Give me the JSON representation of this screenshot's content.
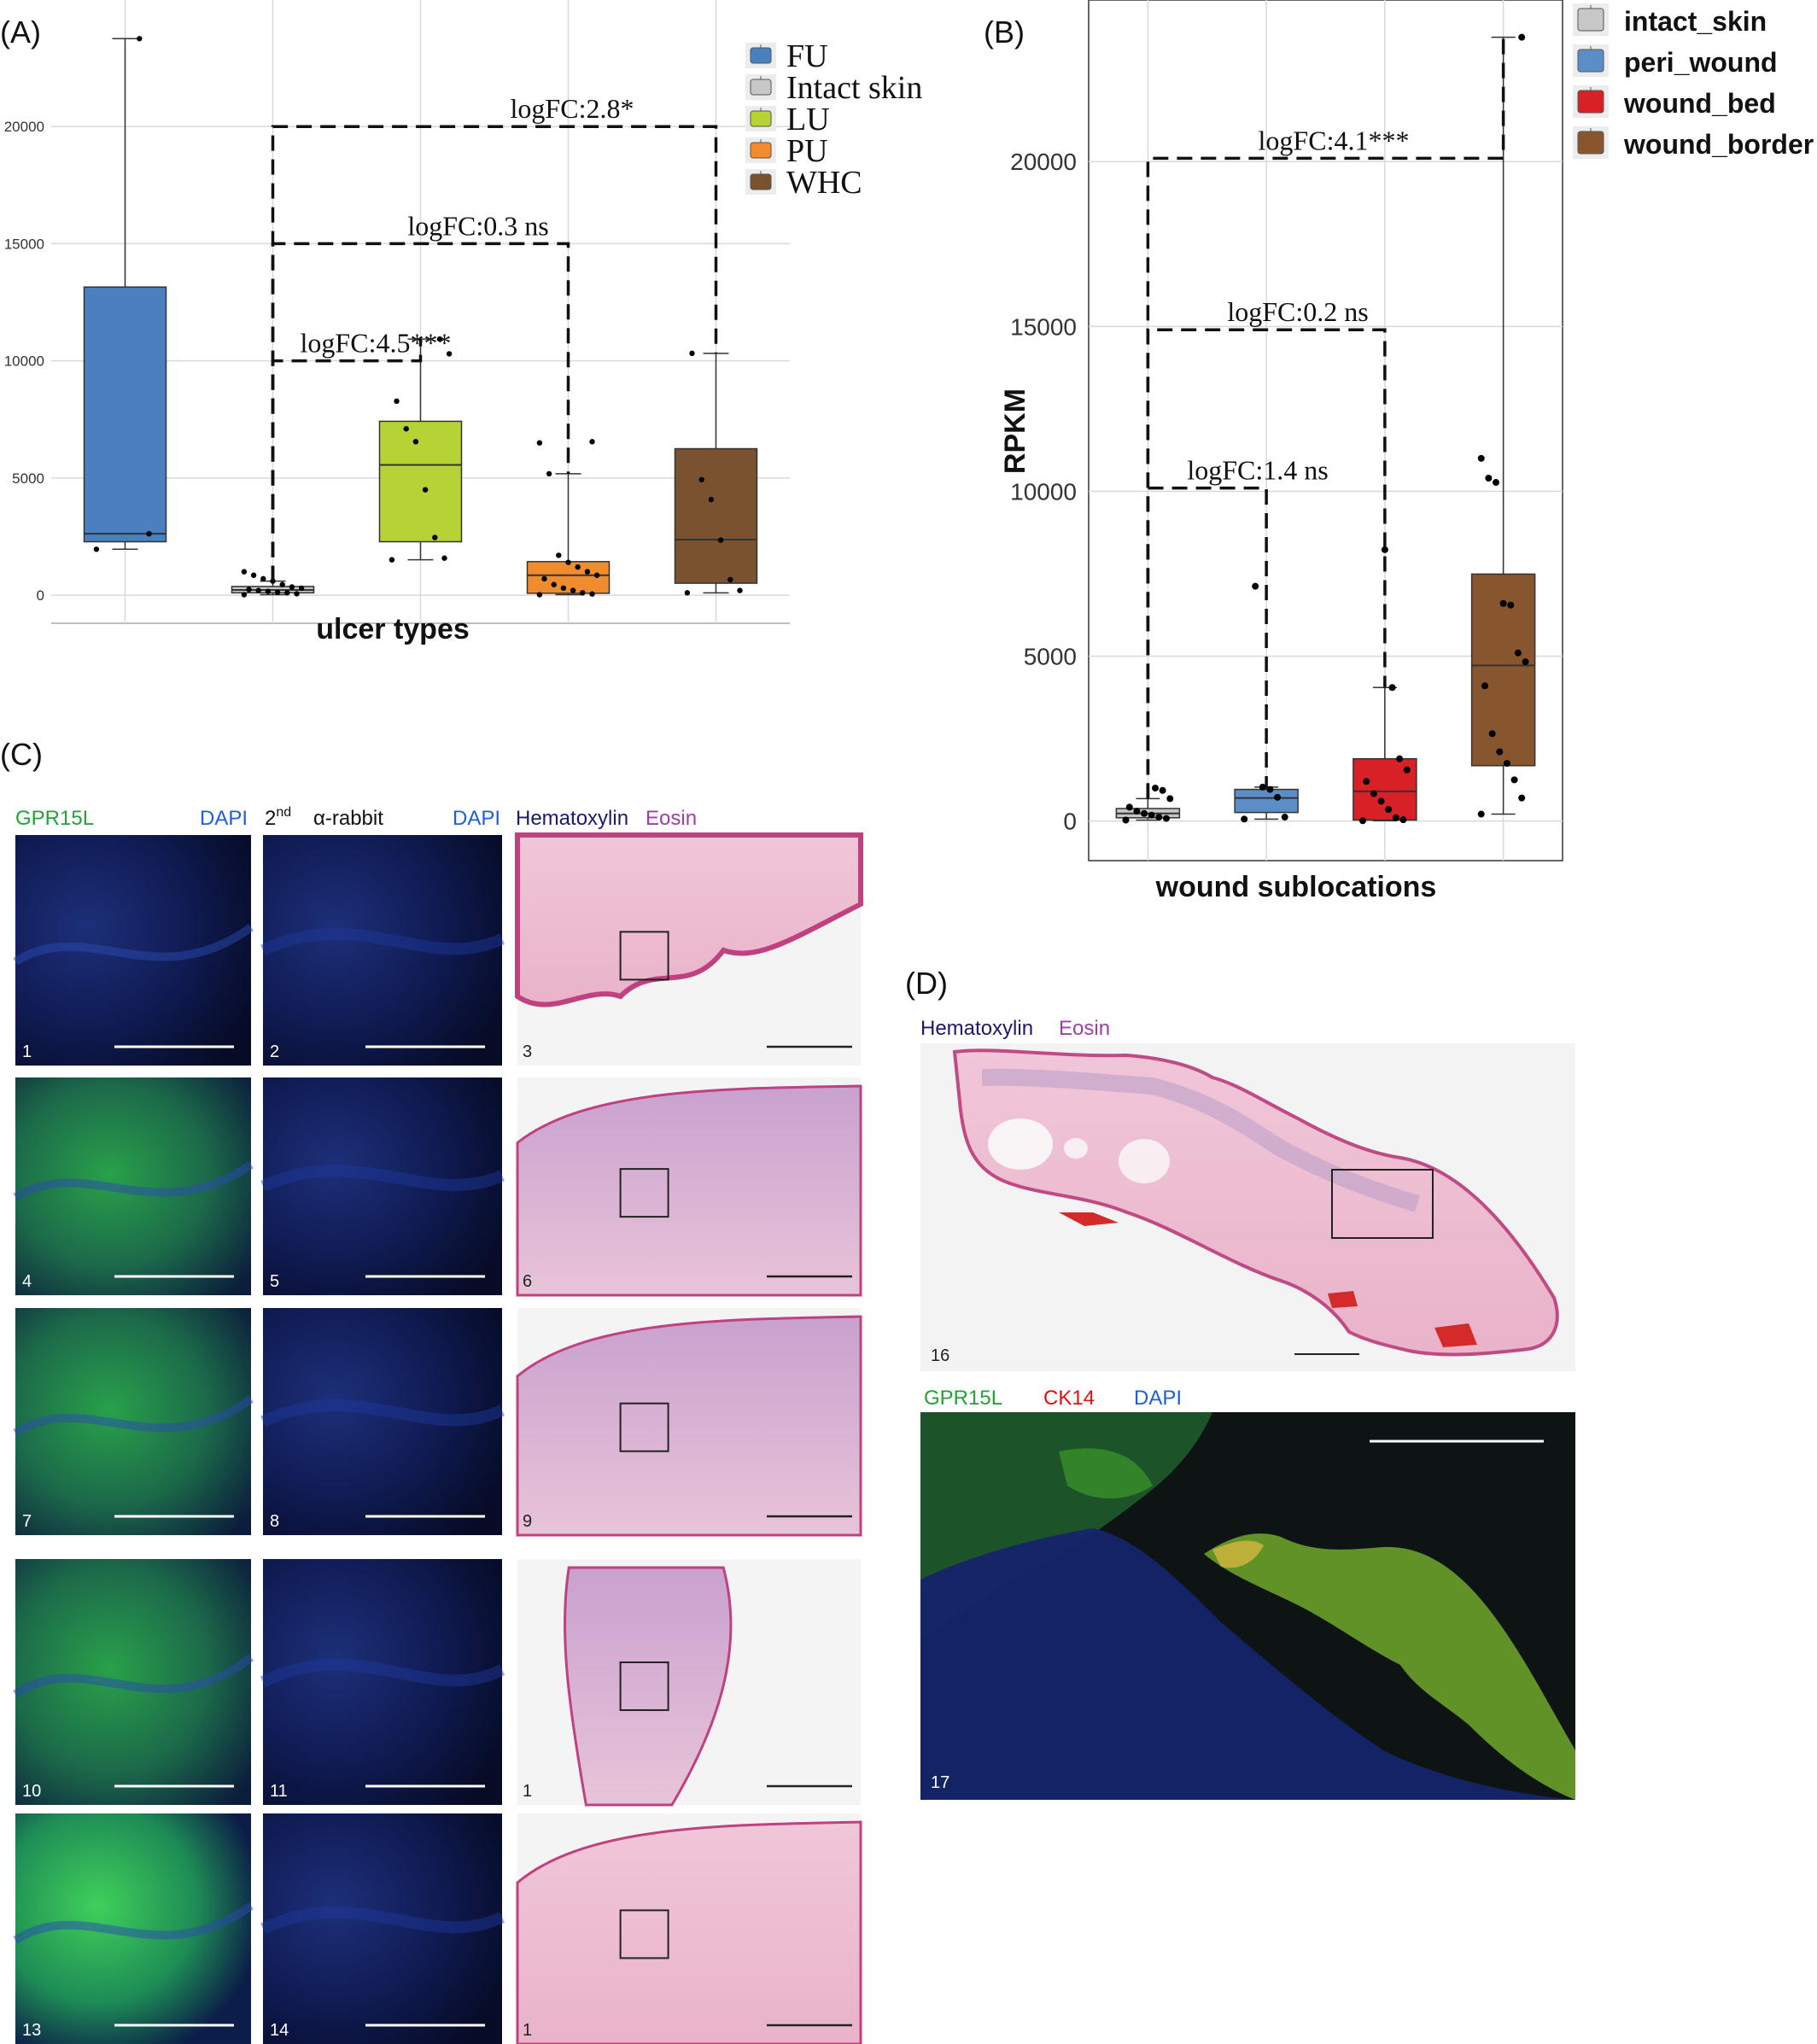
{
  "panels": {
    "a": "(A)",
    "b": "(B)",
    "c": "(C)",
    "d": "(D)"
  },
  "colors": {
    "FU": "#4a80c0",
    "Intact skin": "#c7c7c7",
    "LU": "#b5d334",
    "PU": "#f08c2c",
    "WHC": "#7b5230",
    "intact_skin": "#c7c7c7",
    "peri_wound": "#5b8ec8",
    "wound_bed": "#d72127",
    "wound_border": "#87562f",
    "dapi": "#1f5fd6",
    "gpr15l": "#22a33a",
    "ck14": "#e01010",
    "hematoxylin": "#1b1a6b",
    "eosin": "#9c3fa8"
  },
  "chart_data": [
    {
      "type": "box",
      "id": "A",
      "title": "",
      "xlabel": "ulcer types",
      "ylabel": "",
      "ylim": [
        -1200,
        25400
      ],
      "yticks": [
        0,
        5000,
        10000,
        15000,
        20000
      ],
      "grid": true,
      "legend_position": "top-right",
      "categories": [
        "FU",
        "Intact skin",
        "LU",
        "PU",
        "WHC"
      ],
      "legend": [
        "FU",
        "Intact skin",
        "LU",
        "PU",
        "WHC"
      ],
      "series": [
        {
          "name": "FU",
          "q1": 2280,
          "median": 2620,
          "q3": 13150,
          "whisker_low": 1960,
          "whisker_high": 23750,
          "points": [
            1960,
            2620,
            23750
          ]
        },
        {
          "name": "Intact skin",
          "q1": 100,
          "median": 220,
          "q3": 370,
          "whisker_low": 20,
          "whisker_high": 600,
          "points": [
            20,
            60,
            100,
            120,
            160,
            200,
            240,
            300,
            350,
            450,
            600,
            700,
            850,
            1000
          ]
        },
        {
          "name": "LU",
          "q1": 2280,
          "median": 5560,
          "q3": 7420,
          "whisker_low": 1510,
          "whisker_high": 10930,
          "points": [
            1510,
            1580,
            2460,
            4500,
            6550,
            7100,
            8280,
            10300,
            10930
          ]
        },
        {
          "name": "PU",
          "q1": 80,
          "median": 850,
          "q3": 1430,
          "whisker_low": 20,
          "whisker_high": 5180,
          "points": [
            20,
            50,
            100,
            200,
            300,
            450,
            700,
            850,
            1000,
            1200,
            1400,
            1700,
            5180,
            6500,
            6550
          ]
        },
        {
          "name": "WHC",
          "q1": 510,
          "median": 2370,
          "q3": 6250,
          "whisker_low": 100,
          "whisker_high": 10320,
          "points": [
            100,
            200,
            660,
            2350,
            4080,
            4930,
            10320
          ]
        }
      ],
      "comparisons": [
        {
          "from": 1,
          "to": 4,
          "y": 20000,
          "label": "logFC:2.8*"
        },
        {
          "from": 1,
          "to": 3,
          "y": 15000,
          "label": "logFC:0.3 ns"
        },
        {
          "from": 1,
          "to": 2,
          "y": 10000,
          "label": "logFC:4.5***"
        }
      ]
    },
    {
      "type": "box",
      "id": "B",
      "title": "",
      "xlabel": "wound sublocations",
      "ylabel": "RPKM",
      "ylim": [
        -1200,
        24900
      ],
      "yticks": [
        0,
        5000,
        10000,
        15000,
        20000
      ],
      "grid": true,
      "legend_position": "top-right",
      "categories": [
        "intact_skin",
        "peri_wound",
        "wound_bed",
        "wound_border"
      ],
      "legend": [
        "intact_skin",
        "peri_wound",
        "wound_bed",
        "wound_border"
      ],
      "series": [
        {
          "name": "intact_skin",
          "q1": 100,
          "median": 230,
          "q3": 380,
          "whisker_low": 30,
          "whisker_high": 680,
          "points": [
            30,
            80,
            120,
            180,
            230,
            300,
            420,
            680,
            930,
            1000
          ]
        },
        {
          "name": "peri_wound",
          "q1": 260,
          "median": 700,
          "q3": 960,
          "whisker_low": 60,
          "whisker_high": 1030,
          "points": [
            60,
            120,
            720,
            960,
            1030,
            7120
          ]
        },
        {
          "name": "wound_bed",
          "q1": 30,
          "median": 900,
          "q3": 1890,
          "whisker_low": 10,
          "whisker_high": 4050,
          "points": [
            10,
            40,
            100,
            350,
            600,
            830,
            1200,
            1550,
            1890,
            4050,
            8230
          ]
        },
        {
          "name": "wound_border",
          "q1": 1680,
          "median": 4720,
          "q3": 7490,
          "whisker_low": 210,
          "whisker_high": 23770,
          "points": [
            210,
            700,
            1250,
            1750,
            2100,
            2650,
            4100,
            4830,
            5100,
            6550,
            6600,
            10270,
            10400,
            11000,
            23770
          ]
        }
      ],
      "comparisons": [
        {
          "from": 0,
          "to": 3,
          "y": 20100,
          "label": "logFC:4.1***"
        },
        {
          "from": 0,
          "to": 2,
          "y": 14900,
          "label": "logFC:0.2 ns"
        },
        {
          "from": 0,
          "to": 1,
          "y": 10100,
          "label": "logFC:1.4 ns"
        }
      ]
    }
  ],
  "panel_c": {
    "headers": {
      "gpr15l": "GPR15L",
      "dapi1": "DAPI",
      "second": "2",
      "second_sup": "nd",
      "rabbit": "α-rabbit",
      "dapi2": "DAPI",
      "hematoxylin": "Hematoxylin",
      "eosin": "Eosin"
    },
    "numbers": [
      "1",
      "2",
      "3",
      "4",
      "5",
      "6",
      "7",
      "8",
      "9",
      "10",
      "11",
      "1",
      "13",
      "14",
      "1"
    ]
  },
  "panel_d": {
    "he_hematoxylin": "Hematoxylin",
    "he_eosin": "Eosin",
    "he_number": "16",
    "if_gpr15l": "GPR15L",
    "if_ck14": "CK14",
    "if_dapi": "DAPI",
    "if_number": "17"
  }
}
